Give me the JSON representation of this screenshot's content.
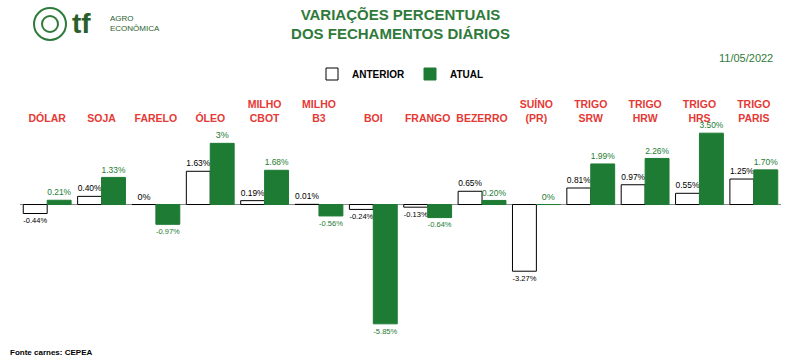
{
  "chart_data": {
    "type": "bar",
    "title": "VARIAÇÕES PERCENTUAIS DOS FECHAMENTOS DIÁRIOS",
    "date": "11/05/2022",
    "logo": "tf",
    "logo_subtitle": "AGRO ECONÔMICA",
    "source": "Fonte carnes: CEPEA",
    "categories": [
      "DÓLAR",
      "SOJA",
      "FARELO",
      "ÓLEO",
      "MILHO CBOT",
      "MILHO B3",
      "BOI",
      "FRANGO",
      "BEZERRO",
      "SUÍNO (PR)",
      "TRIGO SRW",
      "TRIGO HRW",
      "TRIGO HRS",
      "TRIGO PARIS"
    ],
    "series": [
      {
        "name": "ANTERIOR",
        "color": "#ffffff",
        "values": [
          -0.44,
          0.4,
          0,
          1.63,
          0.19,
          0.01,
          -0.24,
          -0.13,
          0.65,
          -3.27,
          0.81,
          0.97,
          0.55,
          1.25
        ],
        "value_labels": [
          "-0.44%",
          "0.40%",
          "0%",
          "1.63%",
          "0.19%",
          "0.01%",
          "-0.24%",
          "-0.13%",
          "0.65%",
          "-3.27%",
          "0.81%",
          "0.97%",
          "0.55%",
          "1.25%"
        ]
      },
      {
        "name": "ATUAL",
        "color": "#1e7b34",
        "values": [
          0.21,
          1.33,
          -0.97,
          3,
          1.68,
          -0.56,
          -5.85,
          -0.64,
          0.2,
          0,
          1.99,
          2.26,
          3.5,
          1.7
        ],
        "value_labels": [
          "0.21%",
          "1.33%",
          "-0.97%",
          "3%",
          "1.68%",
          "-0.56%",
          "-5.85%",
          "-0.64%",
          "0.20%",
          "0%",
          "1.99%",
          "2.26%",
          "3.50%",
          "1.70%"
        ]
      }
    ],
    "ylim": [
      -6.3,
      3.9
    ],
    "data_labels": true,
    "tick_labels": "x",
    "legend": "top"
  }
}
